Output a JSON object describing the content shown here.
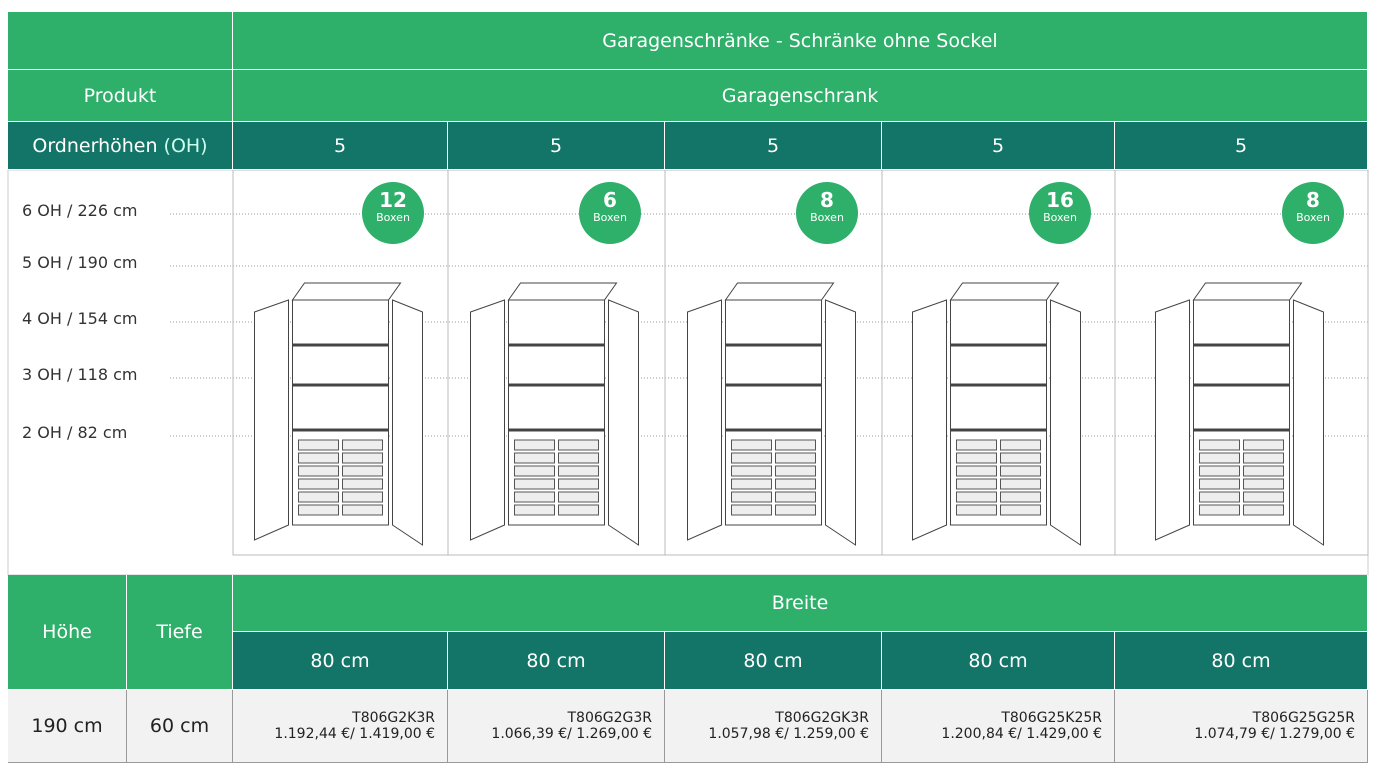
{
  "header": {
    "title": "Garagenschränke - Schränke ohne Sockel",
    "product_label": "Produkt",
    "product": "Garagenschrank",
    "oh_label": "Ordnerhöhen",
    "oh_abbr": "(OH)"
  },
  "heights": [
    "6 OH / 226 cm",
    "5 OH / 190 cm",
    "4 OH / 154 cm",
    "3 OH / 118 cm",
    "2 OH / 82 cm"
  ],
  "columns": [
    {
      "oh": "5",
      "boxes": "12",
      "boxes_label": "Boxen",
      "width": "80 cm",
      "article": "T806G2K3R",
      "price": "1.192,44 €/ 1.419,00 €"
    },
    {
      "oh": "5",
      "boxes": "6",
      "boxes_label": "Boxen",
      "width": "80 cm",
      "article": "T806G2G3R",
      "price": "1.066,39 €/ 1.269,00 €"
    },
    {
      "oh": "5",
      "boxes": "8",
      "boxes_label": "Boxen",
      "width": "80 cm",
      "article": "T806G2GK3R",
      "price": "1.057,98 €/ 1.259,00 €"
    },
    {
      "oh": "5",
      "boxes": "16",
      "boxes_label": "Boxen",
      "width": "80 cm",
      "article": "T806G25K25R",
      "price": "1.200,84 €/ 1.429,00 €"
    },
    {
      "oh": "5",
      "boxes": "8",
      "boxes_label": "Boxen",
      "width": "80 cm",
      "article": "T806G25G25R",
      "price": "1.074,79 €/ 1.279,00 €"
    }
  ],
  "table": {
    "height_label": "Höhe",
    "depth_label": "Tiefe",
    "width_label": "Breite",
    "height": "190 cm",
    "depth": "60 cm"
  }
}
